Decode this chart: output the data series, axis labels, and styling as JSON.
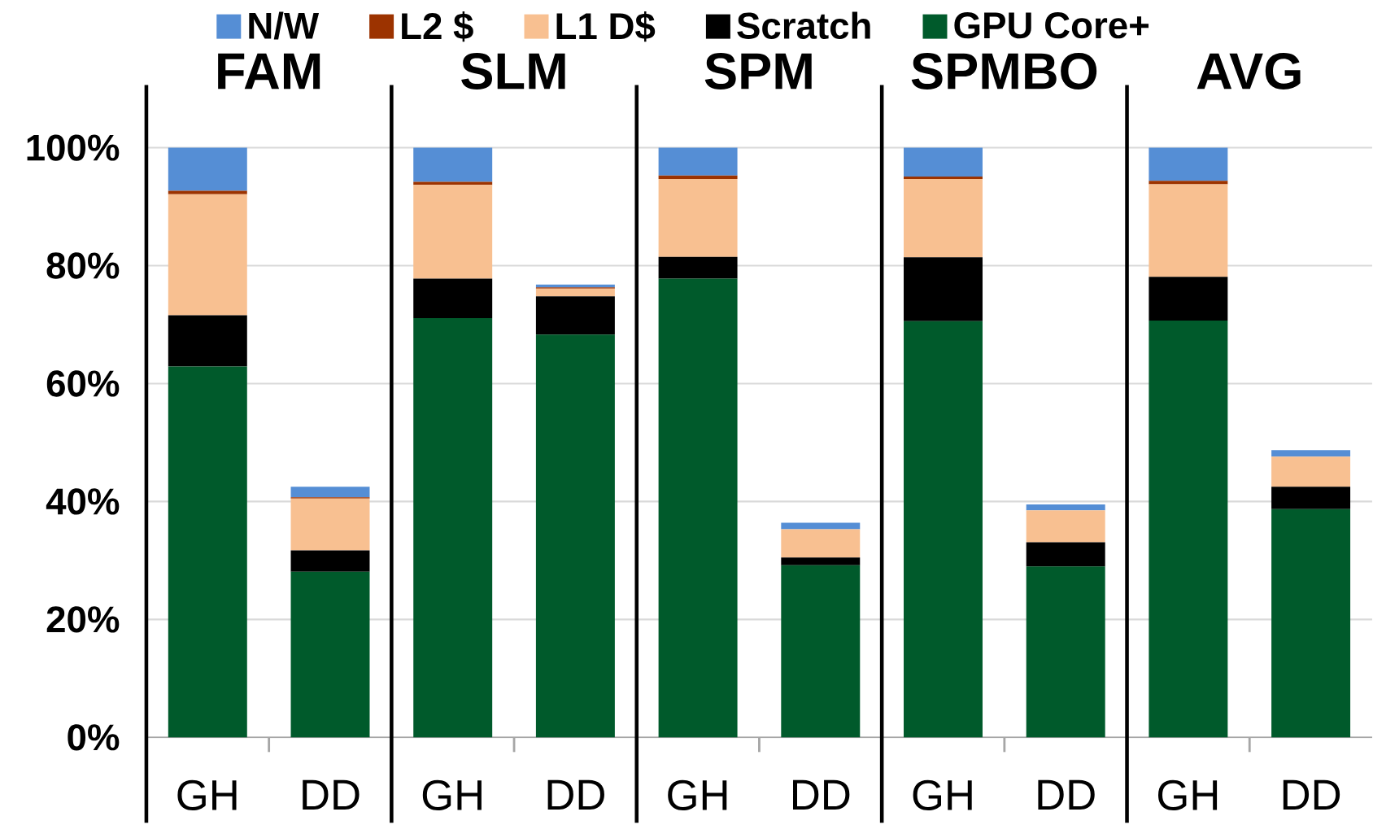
{
  "chart_data": [
    {
      "type": "bar",
      "title": "FAM",
      "categories": [
        "GH",
        "DD"
      ],
      "stacked": true,
      "ylim": [
        0,
        100
      ],
      "yticks": [
        {
          "value": 0,
          "label": "0%"
        },
        {
          "value": 20,
          "label": "20%"
        },
        {
          "value": 40,
          "label": "40%"
        },
        {
          "value": 60,
          "label": "60%"
        },
        {
          "value": 80,
          "label": "80%"
        },
        {
          "value": 100,
          "label": "100%"
        }
      ],
      "grid": "y",
      "legend": "top",
      "series": [
        {
          "name": "GPU Core+",
          "color": "#005a2b",
          "values": [
            62.9,
            28.1
          ]
        },
        {
          "name": "Scratch",
          "color": "#000000",
          "values": [
            8.7,
            3.6
          ]
        },
        {
          "name": "L1 D$",
          "color": "#f8c091",
          "values": [
            20.5,
            8.8
          ]
        },
        {
          "name": "L2 $",
          "color": "#9c3300",
          "values": [
            0.6,
            0.2
          ]
        },
        {
          "name": "N/W",
          "color": "#558ed5",
          "values": [
            7.3,
            1.8
          ]
        }
      ]
    },
    {
      "type": "bar",
      "title": "SLM",
      "categories": [
        "GH",
        "DD"
      ],
      "stacked": true,
      "ylim": [
        0,
        100
      ],
      "yticks": [
        0,
        20,
        40,
        60,
        80,
        100
      ],
      "grid": "y",
      "tick_labels": "x",
      "series": [
        {
          "color": "#005a2b",
          "values": [
            71.1,
            68.3
          ]
        },
        {
          "color": "#000000",
          "values": [
            6.7,
            6.5
          ]
        },
        {
          "color": "#f8c091",
          "values": [
            15.9,
            1.3
          ]
        },
        {
          "color": "#9c3300",
          "values": [
            0.5,
            0.2
          ]
        },
        {
          "color": "#558ed5",
          "values": [
            5.8,
            0.5
          ]
        }
      ]
    },
    {
      "type": "bar",
      "title": "SPM",
      "categories": [
        "GH",
        "DD"
      ],
      "stacked": true,
      "ylim": [
        0,
        100
      ],
      "yticks": [
        0,
        20,
        40,
        60,
        80,
        100
      ],
      "grid": "y",
      "tick_labels": "x",
      "series": [
        {
          "color": "#005a2b",
          "values": [
            77.8,
            29.2
          ]
        },
        {
          "color": "#000000",
          "values": [
            3.7,
            1.3
          ]
        },
        {
          "color": "#f8c091",
          "values": [
            13.2,
            4.8
          ]
        },
        {
          "color": "#9c3300",
          "values": [
            0.6,
            null
          ]
        },
        {
          "color": "#558ed5",
          "values": [
            4.7,
            1.1
          ]
        }
      ]
    },
    {
      "type": "bar",
      "title": "SPMBO",
      "categories": [
        "GH",
        "DD"
      ],
      "stacked": true,
      "ylim": [
        0,
        100
      ],
      "yticks": [
        0,
        20,
        40,
        60,
        80,
        100
      ],
      "grid": "y",
      "tick_labels": "x",
      "series": [
        {
          "color": "#005a2b",
          "values": [
            70.6,
            29.0
          ]
        },
        {
          "color": "#000000",
          "values": [
            10.8,
            4.1
          ]
        },
        {
          "color": "#f8c091",
          "values": [
            13.3,
            5.4
          ]
        },
        {
          "color": "#9c3300",
          "values": [
            0.4,
            null
          ]
        },
        {
          "color": "#558ed5",
          "values": [
            4.9,
            1.0
          ]
        }
      ]
    },
    {
      "type": "bar",
      "title": "AVG",
      "categories": [
        "GH",
        "DD"
      ],
      "stacked": true,
      "ylim": [
        0,
        100
      ],
      "yticks": [
        0,
        20,
        40,
        60,
        80,
        100
      ],
      "grid": "y",
      "tick_labels": "x",
      "series": [
        {
          "color": "#005a2b",
          "values": [
            70.7,
            38.7
          ]
        },
        {
          "color": "#000000",
          "values": [
            7.4,
            3.8
          ]
        },
        {
          "color": "#f8c091",
          "values": [
            15.7,
            5.1
          ]
        },
        {
          "color": "#9c3300",
          "values": [
            0.6,
            null
          ]
        },
        {
          "color": "#558ed5",
          "values": [
            5.6,
            1.1
          ]
        }
      ]
    }
  ]
}
